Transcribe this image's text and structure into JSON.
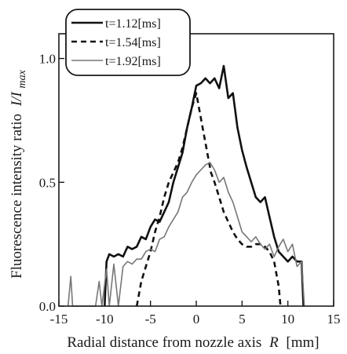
{
  "chart_data": {
    "type": "line",
    "xlabel": "Radial distance from nozzle axis",
    "xlabel_symbol": "R",
    "xlabel_unit": "[mm]",
    "ylabel": "Fluorescence intensity ratio",
    "ylabel_symbol": "I/I",
    "ylabel_subscript": "max",
    "xlim": [
      -15,
      15
    ],
    "ylim": [
      0,
      1.1
    ],
    "x_ticks": [
      -15,
      -10,
      -5,
      0,
      5,
      10,
      15
    ],
    "x_tick_labels": [
      "-15",
      "-10",
      "-5",
      "0",
      "5",
      "10",
      "15"
    ],
    "y_ticks": [
      0,
      0.5,
      1.0
    ],
    "y_tick_labels": [
      "0.0",
      "0.5",
      "1.0"
    ],
    "grid": false,
    "legend_position": "top-left, extending above plot frame",
    "series": [
      {
        "name": "t=1.12[ms]",
        "color": "#111111",
        "style": "solid-thick",
        "points": [
          [
            -10.0,
            0.0
          ],
          [
            -9.8,
            0.18
          ],
          [
            -9.5,
            0.21
          ],
          [
            -9.0,
            0.2
          ],
          [
            -8.5,
            0.21
          ],
          [
            -8.0,
            0.2
          ],
          [
            -7.5,
            0.24
          ],
          [
            -7.0,
            0.23
          ],
          [
            -6.5,
            0.24
          ],
          [
            -6.0,
            0.28
          ],
          [
            -5.5,
            0.27
          ],
          [
            -5.0,
            0.32
          ],
          [
            -4.5,
            0.35
          ],
          [
            -4.0,
            0.34
          ],
          [
            -3.5,
            0.38
          ],
          [
            -3.0,
            0.42
          ],
          [
            -2.5,
            0.5
          ],
          [
            -2.0,
            0.56
          ],
          [
            -1.5,
            0.62
          ],
          [
            -1.0,
            0.72
          ],
          [
            -0.5,
            0.8
          ],
          [
            0.0,
            0.89
          ],
          [
            0.5,
            0.9
          ],
          [
            1.0,
            0.92
          ],
          [
            1.5,
            0.9
          ],
          [
            2.0,
            0.92
          ],
          [
            2.5,
            0.88
          ],
          [
            3.0,
            0.97
          ],
          [
            3.5,
            0.84
          ],
          [
            4.0,
            0.86
          ],
          [
            4.5,
            0.72
          ],
          [
            5.0,
            0.63
          ],
          [
            5.5,
            0.56
          ],
          [
            6.0,
            0.5
          ],
          [
            6.5,
            0.44
          ],
          [
            7.0,
            0.42
          ],
          [
            7.5,
            0.44
          ],
          [
            8.0,
            0.36
          ],
          [
            8.5,
            0.28
          ],
          [
            9.0,
            0.22
          ],
          [
            9.5,
            0.2
          ],
          [
            10.0,
            0.18
          ],
          [
            10.5,
            0.2
          ],
          [
            11.0,
            0.18
          ],
          [
            11.5,
            0.18
          ],
          [
            11.7,
            0.0
          ]
        ]
      },
      {
        "name": "t=1.54[ms]",
        "color": "#111111",
        "style": "dashed",
        "points": [
          [
            -6.5,
            0.0
          ],
          [
            -6.0,
            0.1
          ],
          [
            -5.5,
            0.16
          ],
          [
            -5.0,
            0.22
          ],
          [
            -4.5,
            0.3
          ],
          [
            -4.0,
            0.36
          ],
          [
            -3.5,
            0.44
          ],
          [
            -3.0,
            0.5
          ],
          [
            -2.5,
            0.54
          ],
          [
            -2.0,
            0.58
          ],
          [
            -1.5,
            0.64
          ],
          [
            -1.0,
            0.72
          ],
          [
            -0.5,
            0.8
          ],
          [
            0.0,
            0.86
          ],
          [
            0.3,
            0.8
          ],
          [
            0.8,
            0.7
          ],
          [
            1.2,
            0.62
          ],
          [
            1.6,
            0.54
          ],
          [
            2.0,
            0.5
          ],
          [
            2.5,
            0.44
          ],
          [
            3.0,
            0.38
          ],
          [
            3.5,
            0.34
          ],
          [
            4.0,
            0.3
          ],
          [
            4.5,
            0.27
          ],
          [
            5.0,
            0.25
          ],
          [
            5.5,
            0.24
          ],
          [
            6.0,
            0.24
          ],
          [
            6.5,
            0.25
          ],
          [
            7.0,
            0.25
          ],
          [
            7.5,
            0.24
          ],
          [
            8.0,
            0.22
          ],
          [
            8.5,
            0.18
          ],
          [
            9.0,
            0.08
          ],
          [
            9.2,
            0.0
          ]
        ]
      },
      {
        "name": "t=1.92[ms]",
        "color": "#777777",
        "style": "solid-thin",
        "points": [
          [
            -14.0,
            0.0
          ],
          [
            -13.7,
            0.12
          ],
          [
            -13.5,
            0.0
          ],
          [
            -11.0,
            0.0
          ],
          [
            -10.6,
            0.1
          ],
          [
            -10.3,
            0.0
          ],
          [
            -9.8,
            0.15
          ],
          [
            -9.5,
            0.0
          ],
          [
            -9.0,
            0.17
          ],
          [
            -8.5,
            0.0
          ],
          [
            -8.0,
            0.16
          ],
          [
            -7.5,
            0.18
          ],
          [
            -7.0,
            0.17
          ],
          [
            -6.5,
            0.19
          ],
          [
            -6.0,
            0.19
          ],
          [
            -5.5,
            0.22
          ],
          [
            -5.0,
            0.23
          ],
          [
            -4.5,
            0.22
          ],
          [
            -4.0,
            0.27
          ],
          [
            -3.5,
            0.28
          ],
          [
            -3.0,
            0.32
          ],
          [
            -2.5,
            0.35
          ],
          [
            -2.0,
            0.38
          ],
          [
            -1.5,
            0.44
          ],
          [
            -1.0,
            0.46
          ],
          [
            -0.5,
            0.5
          ],
          [
            0.0,
            0.53
          ],
          [
            0.5,
            0.55
          ],
          [
            1.0,
            0.57
          ],
          [
            1.5,
            0.58
          ],
          [
            2.0,
            0.55
          ],
          [
            2.5,
            0.5
          ],
          [
            3.0,
            0.52
          ],
          [
            3.5,
            0.46
          ],
          [
            4.0,
            0.42
          ],
          [
            4.5,
            0.36
          ],
          [
            5.0,
            0.3
          ],
          [
            5.5,
            0.28
          ],
          [
            6.0,
            0.26
          ],
          [
            6.5,
            0.28
          ],
          [
            7.0,
            0.25
          ],
          [
            7.5,
            0.23
          ],
          [
            8.0,
            0.25
          ],
          [
            8.5,
            0.2
          ],
          [
            9.0,
            0.24
          ],
          [
            9.5,
            0.27
          ],
          [
            10.0,
            0.22
          ],
          [
            10.5,
            0.25
          ],
          [
            11.0,
            0.16
          ],
          [
            11.5,
            0.18
          ],
          [
            11.8,
            0.0
          ]
        ]
      }
    ]
  }
}
